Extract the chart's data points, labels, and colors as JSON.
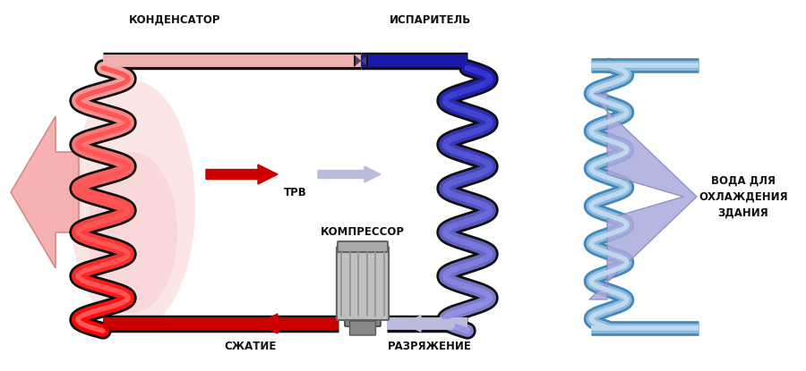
{
  "bg_color": "#ffffff",
  "label_kondensator": "КОНДЕНСАТОР",
  "label_isparitel": "ИСПАРИТЕЛЬ",
  "label_trv": "ТРВ",
  "label_kompressor": "КОМПРЕССОР",
  "label_szhatiye": "СЖАТИЕ",
  "label_razryazheniye": "РАЗРЯЖЕНИЕ",
  "label_voda": "ВОДА ДЛЯ\nОХЛАЖДЕНИЯ\nЗДАНИЯ",
  "outline": "#111111",
  "hot_dark": "#cc0000",
  "hot_mid": "#ee3333",
  "hot_pink": "#f0b0b0",
  "hot_very_light": "#fce0e0",
  "cold_darkest": "#1a1aaa",
  "cold_dark": "#2222bb",
  "cold_mid": "#4444cc",
  "cold_light": "#8888cc",
  "cold_vlight": "#aaaadd",
  "cold_lavender": "#bbbbdd",
  "water_dark": "#4488bb",
  "water_mid": "#88bbdd",
  "water_light": "#c0d8ee",
  "water_vlight": "#ddeef8",
  "arrow_red": "#cc0000",
  "arrow_blue": "#9999bb",
  "text_color": "#111111"
}
